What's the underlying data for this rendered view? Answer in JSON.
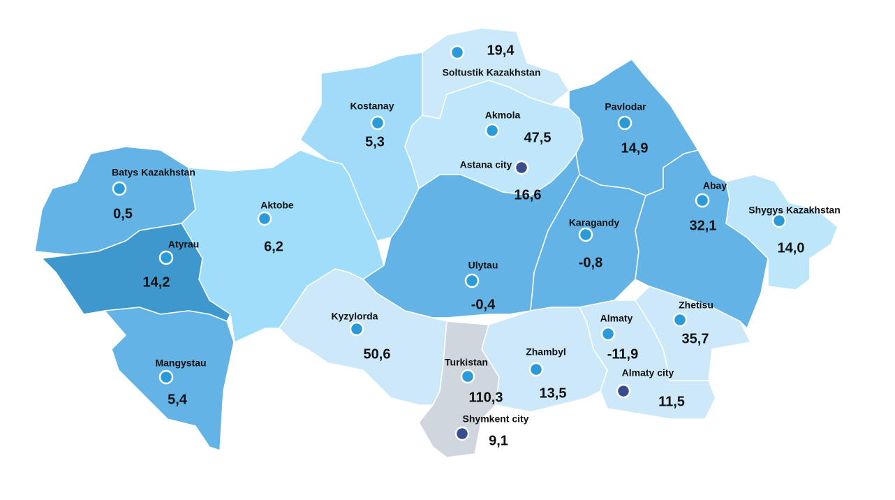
{
  "regions": [
    {
      "name": "Soltustik Kazakhstan",
      "value": "19,4",
      "color": "#cce9fa",
      "marker_color": "#2a9ad8"
    },
    {
      "name": "Kostanay",
      "value": "5,3",
      "color": "#a0dcfa",
      "marker_color": "#2a9ad8"
    },
    {
      "name": "Akmola",
      "value": "47,5",
      "color": "#bfe6fb",
      "marker_color": "#2a9ad8"
    },
    {
      "name": "Astana city",
      "value": "16,6",
      "color": null,
      "marker_color": "#394d8e"
    },
    {
      "name": "Pavlodar",
      "value": "14,9",
      "color": "#63b3e6",
      "marker_color": "#2a9ad8"
    },
    {
      "name": "Batys Kazakhstan",
      "value": "0,5",
      "color": "#63b3e6",
      "marker_color": "#2a9ad8"
    },
    {
      "name": "Aktobe",
      "value": "6,2",
      "color": "#a0ddfb",
      "marker_color": "#2a9ad8"
    },
    {
      "name": "Atyrau",
      "value": "14,2",
      "color": "#3f98cd",
      "marker_color": "#2a9ad8"
    },
    {
      "name": "Karagandy",
      "value": "-0,8",
      "color": "#63b3e6",
      "marker_color": "#2a9ad8"
    },
    {
      "name": "Abay",
      "value": "32,1",
      "color": "#63b3e6",
      "marker_color": "#2a9ad8"
    },
    {
      "name": "Shygys Kazakhstan",
      "value": "14,0",
      "color": "#bde6fb",
      "marker_color": "#2a9ad8"
    },
    {
      "name": "Ulytau",
      "value": "-0,4",
      "color": "#63b3e6",
      "marker_color": "#2a9ad8"
    },
    {
      "name": "Kyzylorda",
      "value": "50,6",
      "color": "#cde9f9",
      "marker_color": "#2a9ad8"
    },
    {
      "name": "Mangystau",
      "value": "5,4",
      "color": "#63b3e6",
      "marker_color": "#2a9ad8"
    },
    {
      "name": "Turkistan",
      "value": "110,3",
      "color": "#cfd6de",
      "marker_color": "#2a9ad8"
    },
    {
      "name": "Zhambyl",
      "value": "13,5",
      "color": "#cde9f9",
      "marker_color": "#2a9ad8"
    },
    {
      "name": "Almaty",
      "value": "-11,9",
      "color": "#cde9f9",
      "marker_color": "#2a9ad8"
    },
    {
      "name": "Zhetisu",
      "value": "35,7",
      "color": "#cde9f9",
      "marker_color": "#2a9ad8"
    },
    {
      "name": "Almaty city",
      "value": "11,5",
      "color": null,
      "marker_color": "#394d8e"
    },
    {
      "name": "Shymkent city",
      "value": "9,1",
      "color": null,
      "marker_color": "#394d8e"
    }
  ]
}
